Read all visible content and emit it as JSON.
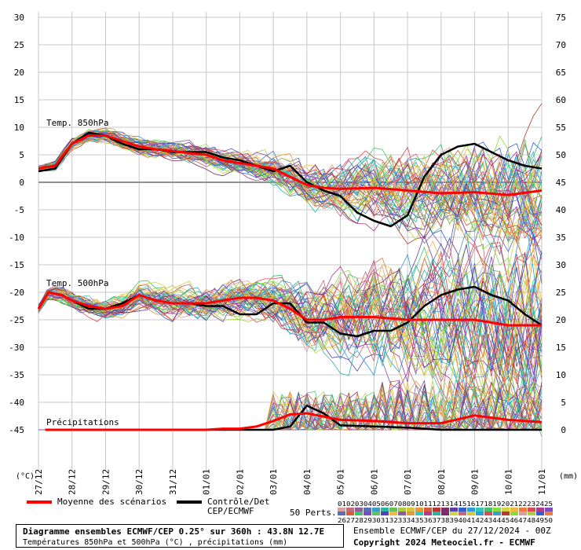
{
  "chart_data": {
    "type": "line",
    "title": "Diagramme ensembles ECMWF/CEP 0.25° sur 360h : 43.8N 12.7E",
    "subtitle": "Températures 850hPa et 500hPa (°C) , précipitations (mm)",
    "run": "Ensemble ECMWF/CEP du 27/12/2024 - 00Z",
    "copyright": "Copyright 2024 Meteociel.fr - ECMWF",
    "left_axis_unit": "(°C)",
    "right_axis_unit": "(mm)",
    "left_ticks": [
      30,
      25,
      20,
      15,
      10,
      5,
      0,
      -5,
      -10,
      -15,
      -20,
      -25,
      -30,
      -35,
      -40,
      -45
    ],
    "right_ticks": [
      75,
      70,
      65,
      60,
      55,
      50,
      45,
      40,
      35,
      30,
      25,
      20,
      15,
      10,
      5,
      0
    ],
    "ylim": [
      -50,
      30
    ],
    "x_labels": [
      "27/12",
      "28/12",
      "29/12",
      "30/12",
      "31/12",
      "01/01",
      "02/01",
      "03/01",
      "04/01",
      "05/01",
      "06/01",
      "07/01",
      "08/01",
      "09/01",
      "10/01",
      "11/01"
    ],
    "grid": true,
    "panel_labels": {
      "t850": "Temp. 850hPa",
      "t500": "Temp. 500hPa",
      "precip": "Précipitations"
    },
    "legend": {
      "mean_label": "Moyenne des scénarios",
      "control_label_1": "Contrôle/Det",
      "control_label_2": "CEP/ECMWF",
      "perts_label": "50 Perts.",
      "perts_row1": "01020304050607080910111213141516171819202122232425",
      "perts_row2": "26272829303132333435363738394041424344454647484950"
    },
    "series": [
      {
        "name": "Moyenne des scénarios",
        "color": "#ff0000",
        "t850": [
          [
            0,
            2.5
          ],
          [
            0.5,
            3
          ],
          [
            1,
            7
          ],
          [
            1.5,
            8.5
          ],
          [
            2,
            8.5
          ],
          [
            2.5,
            7.5
          ],
          [
            3,
            6.5
          ],
          [
            3.5,
            6
          ],
          [
            4,
            5.7
          ],
          [
            4.5,
            5.3
          ],
          [
            5,
            5
          ],
          [
            5.5,
            4
          ],
          [
            6,
            3.5
          ],
          [
            6.5,
            3
          ],
          [
            7,
            2.5
          ],
          [
            7.5,
            1
          ],
          [
            8,
            -0.5
          ],
          [
            8.5,
            -1
          ],
          [
            9,
            -1.2
          ],
          [
            10,
            -1
          ],
          [
            11,
            -1.5
          ],
          [
            12,
            -2
          ],
          [
            13,
            -1.8
          ],
          [
            14,
            -2.3
          ],
          [
            15,
            -1.5
          ]
        ],
        "t500": [
          [
            0,
            -23
          ],
          [
            0.3,
            -20
          ],
          [
            0.7,
            -20.5
          ],
          [
            1,
            -21.5
          ],
          [
            1.5,
            -22.5
          ],
          [
            2,
            -23
          ],
          [
            2.5,
            -22.5
          ],
          [
            3,
            -20.5
          ],
          [
            3.5,
            -21.5
          ],
          [
            4,
            -22
          ],
          [
            4.5,
            -22
          ],
          [
            5,
            -22
          ],
          [
            5.5,
            -21.5
          ],
          [
            6,
            -21
          ],
          [
            6.5,
            -21
          ],
          [
            7,
            -21.5
          ],
          [
            7.5,
            -23
          ],
          [
            8,
            -25
          ],
          [
            8.5,
            -25
          ],
          [
            9,
            -24.5
          ],
          [
            10,
            -24.5
          ],
          [
            11,
            -25
          ],
          [
            12,
            -25
          ],
          [
            13,
            -25
          ],
          [
            14,
            -26
          ],
          [
            15,
            -26
          ]
        ],
        "precip": [
          [
            0.2,
            0
          ],
          [
            1,
            0
          ],
          [
            2,
            0
          ],
          [
            3,
            0
          ],
          [
            4,
            0
          ],
          [
            5,
            0
          ],
          [
            5.5,
            0.1
          ],
          [
            6,
            0.1
          ],
          [
            6.5,
            0.3
          ],
          [
            7,
            0.8
          ],
          [
            7.5,
            1.4
          ],
          [
            8,
            1.5
          ],
          [
            8.5,
            1.2
          ],
          [
            9,
            0.9
          ],
          [
            10,
            0.8
          ],
          [
            11,
            0.6
          ],
          [
            12,
            0.6
          ],
          [
            13,
            1.3
          ],
          [
            14,
            0.9
          ],
          [
            15,
            0.7
          ]
        ]
      },
      {
        "name": "Contrôle/Det",
        "color": "#000000",
        "t850": [
          [
            0,
            2
          ],
          [
            0.5,
            2.5
          ],
          [
            1,
            7
          ],
          [
            1.5,
            9
          ],
          [
            2,
            8.5
          ],
          [
            2.5,
            7
          ],
          [
            3,
            6
          ],
          [
            3.5,
            6
          ],
          [
            4,
            5.5
          ],
          [
            4.5,
            5.5
          ],
          [
            5,
            5.5
          ],
          [
            5.5,
            4.5
          ],
          [
            6,
            4
          ],
          [
            6.5,
            3
          ],
          [
            7,
            2
          ],
          [
            7.5,
            3
          ],
          [
            8,
            0
          ],
          [
            8.5,
            -1.5
          ],
          [
            9,
            -2.5
          ],
          [
            9.5,
            -5.5
          ],
          [
            10,
            -7
          ],
          [
            10.5,
            -8
          ],
          [
            11,
            -6
          ],
          [
            11.5,
            1
          ],
          [
            12,
            5
          ],
          [
            12.5,
            6.5
          ],
          [
            13,
            7
          ],
          [
            13.5,
            5.5
          ],
          [
            14,
            4
          ],
          [
            14.5,
            3
          ],
          [
            15,
            2.5
          ]
        ],
        "t500": [
          [
            0,
            -23
          ],
          [
            0.3,
            -20
          ],
          [
            0.7,
            -20.5
          ],
          [
            1,
            -21.5
          ],
          [
            1.5,
            -23
          ],
          [
            2,
            -23
          ],
          [
            2.5,
            -22
          ],
          [
            3,
            -20.5
          ],
          [
            3.5,
            -21.5
          ],
          [
            4,
            -22
          ],
          [
            4.5,
            -22
          ],
          [
            5,
            -22.5
          ],
          [
            5.5,
            -22.5
          ],
          [
            6,
            -24
          ],
          [
            6.5,
            -24
          ],
          [
            7,
            -22
          ],
          [
            7.5,
            -22
          ],
          [
            8,
            -25.5
          ],
          [
            8.5,
            -25.5
          ],
          [
            9,
            -27.5
          ],
          [
            9.5,
            -28
          ],
          [
            10,
            -27
          ],
          [
            10.5,
            -27
          ],
          [
            11,
            -25.5
          ],
          [
            11.5,
            -22.5
          ],
          [
            12,
            -20.5
          ],
          [
            12.5,
            -19.5
          ],
          [
            13,
            -19
          ],
          [
            13.5,
            -20.5
          ],
          [
            14,
            -21.5
          ],
          [
            14.5,
            -24
          ],
          [
            15,
            -26
          ]
        ],
        "precip": [
          [
            0.2,
            0
          ],
          [
            1,
            0
          ],
          [
            2,
            0
          ],
          [
            3,
            0
          ],
          [
            4,
            0
          ],
          [
            5,
            0
          ],
          [
            6,
            0
          ],
          [
            7,
            0
          ],
          [
            7.5,
            0.3
          ],
          [
            8,
            2.2
          ],
          [
            8.5,
            1.5
          ],
          [
            9,
            0.4
          ],
          [
            10,
            0.3
          ],
          [
            11,
            0.2
          ],
          [
            12,
            0
          ],
          [
            13,
            0
          ],
          [
            14,
            0
          ],
          [
            15,
            0
          ]
        ]
      }
    ]
  }
}
